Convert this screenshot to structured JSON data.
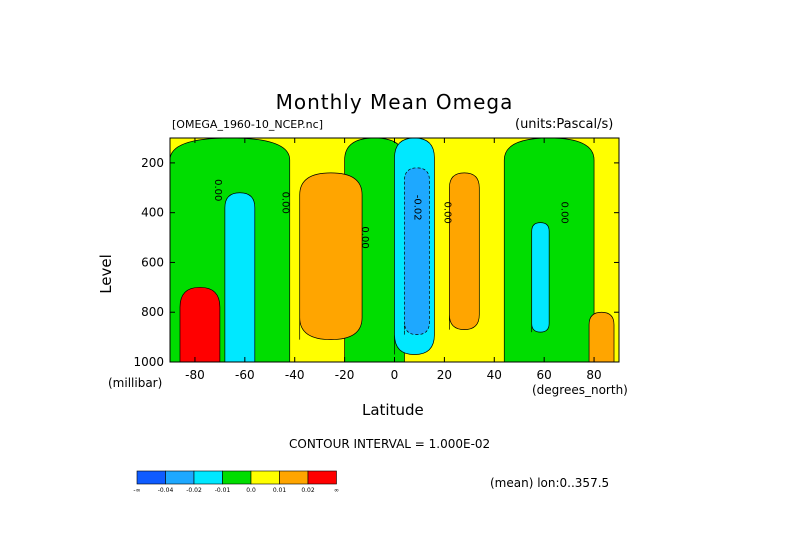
{
  "title": "Monthly Mean Omega",
  "source_file": "[OMEGA_1960-10_NCEP.nc]",
  "units": "(units:Pascal/s)",
  "y_axis_label": "Level",
  "y_axis_unit": "(millibar)",
  "x_axis_label": "Latitude",
  "x_axis_unit": "(degrees_north)",
  "contour_interval": "CONTOUR INTERVAL = 1.000E-02",
  "mean_note": "(mean) lon:0..357.5",
  "colors": {
    "c1": "#0f5bff",
    "c2": "#1ea8ff",
    "c3": "#00e8ff",
    "c4": "#00dd00",
    "c5": "#ffff00",
    "c6": "#ffa500",
    "c7": "#ff0000",
    "black": "#000000"
  },
  "chart_data": {
    "type": "heatmap",
    "title": "Monthly Mean Omega",
    "xlabel": "Latitude",
    "ylabel": "Level",
    "xlim": [
      -90,
      90
    ],
    "ylim": [
      1000,
      100
    ],
    "y_reversed": true,
    "x_ticks": [
      -80,
      -60,
      -40,
      -20,
      0,
      20,
      40,
      60,
      80
    ],
    "x_tick_labels": [
      "-80",
      "-60",
      "-40",
      "-20",
      "0",
      "20",
      "40",
      "60",
      "80"
    ],
    "y_ticks": [
      200,
      400,
      600,
      800,
      1000
    ],
    "y_tick_labels": [
      "200",
      "400",
      "600",
      "800",
      "1000"
    ],
    "contour_levels": [
      -0.04,
      -0.02,
      -0.01,
      0.0,
      0.01,
      0.02
    ],
    "contour_labels": [
      {
        "text": "0.00",
        "x": -72,
        "y": 310
      },
      {
        "text": "0.00",
        "x": -45,
        "y": 360
      },
      {
        "text": "0.00",
        "x": -13,
        "y": 500
      },
      {
        "text": "-0.02",
        "x": 8,
        "y": 380
      },
      {
        "text": "0.00",
        "x": 20,
        "y": 400
      },
      {
        "text": "0.00",
        "x": 67,
        "y": 400
      }
    ],
    "regions": [
      {
        "name": "green-left",
        "level": "c4",
        "x": [
          -90,
          -42
        ],
        "y": [
          100,
          1000
        ]
      },
      {
        "name": "green-mid",
        "level": "c4",
        "x": [
          -20,
          4
        ],
        "y": [
          100,
          1000
        ]
      },
      {
        "name": "green-right",
        "level": "c4",
        "x": [
          44,
          80
        ],
        "y": [
          100,
          1000
        ]
      },
      {
        "name": "cyan-sh",
        "level": "c3",
        "x": [
          -68,
          -56
        ],
        "y": [
          320,
          1000
        ]
      },
      {
        "name": "cyan-tropics",
        "level": "c3",
        "x": [
          0,
          16
        ],
        "y": [
          100,
          970
        ]
      },
      {
        "name": "blue-tropics",
        "level": "c2",
        "x": [
          4,
          14
        ],
        "y": [
          220,
          890
        ]
      },
      {
        "name": "cyan-nh",
        "level": "c3",
        "x": [
          55,
          62
        ],
        "y": [
          440,
          880
        ]
      },
      {
        "name": "orange-south",
        "level": "c6",
        "x": [
          -38,
          -13
        ],
        "y": [
          240,
          910
        ]
      },
      {
        "name": "orange-eq",
        "level": "c6",
        "x": [
          22,
          34
        ],
        "y": [
          240,
          870
        ]
      },
      {
        "name": "orange-north",
        "level": "c6",
        "x": [
          78,
          88
        ],
        "y": [
          800,
          1000
        ]
      },
      {
        "name": "red-polar",
        "level": "c7",
        "x": [
          -86,
          -70
        ],
        "y": [
          700,
          1000
        ]
      }
    ],
    "colorbar": {
      "colors": [
        "c1",
        "c2",
        "c3",
        "c4",
        "c5",
        "c6",
        "c7"
      ],
      "labels": [
        "-∞",
        "-0.04",
        "-0.02",
        "-0.01",
        "0.0",
        "0.01",
        "0.02",
        "∞"
      ]
    }
  }
}
